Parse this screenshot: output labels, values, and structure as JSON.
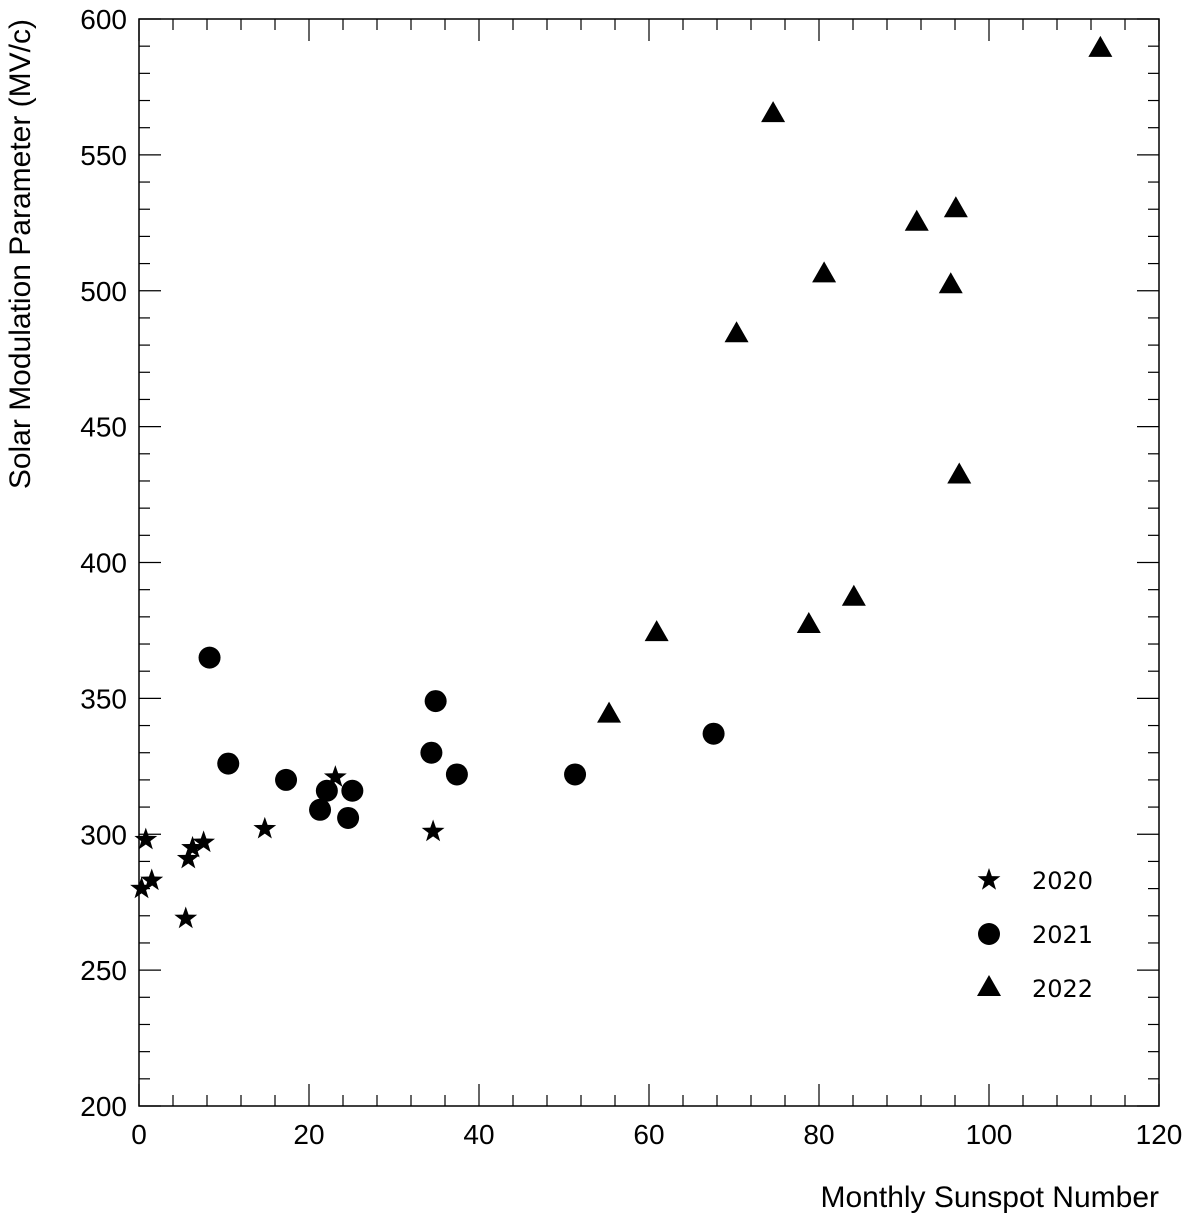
{
  "chart_data": {
    "type": "scatter",
    "title": "",
    "xlabel": "Monthly Sunspot Number",
    "ylabel": "Solar Modulation Parameter (MV/c)",
    "xlim": [
      0,
      120
    ],
    "ylim": [
      200,
      600
    ],
    "x_ticks": [
      "0",
      "20",
      "40",
      "60",
      "80",
      "100",
      "120"
    ],
    "y_ticks": [
      "200",
      "250",
      "300",
      "350",
      "400",
      "450",
      "500",
      "550",
      "600"
    ],
    "grid": false,
    "legend_position": "bottom-right",
    "series": [
      {
        "name": "2020",
        "marker": "star",
        "points": [
          {
            "x": 0.3,
            "y": 280
          },
          {
            "x": 0.8,
            "y": 298
          },
          {
            "x": 1.5,
            "y": 283
          },
          {
            "x": 5.5,
            "y": 269
          },
          {
            "x": 5.8,
            "y": 291
          },
          {
            "x": 6.3,
            "y": 295
          },
          {
            "x": 7.6,
            "y": 297
          },
          {
            "x": 14.8,
            "y": 302
          },
          {
            "x": 23.1,
            "y": 321
          },
          {
            "x": 34.6,
            "y": 301
          }
        ]
      },
      {
        "name": "2021",
        "marker": "circle",
        "points": [
          {
            "x": 8.3,
            "y": 365
          },
          {
            "x": 10.5,
            "y": 326
          },
          {
            "x": 17.3,
            "y": 320
          },
          {
            "x": 21.3,
            "y": 309
          },
          {
            "x": 22.1,
            "y": 316
          },
          {
            "x": 24.6,
            "y": 306
          },
          {
            "x": 25.1,
            "y": 316
          },
          {
            "x": 34.4,
            "y": 330
          },
          {
            "x": 34.9,
            "y": 349
          },
          {
            "x": 37.4,
            "y": 322
          },
          {
            "x": 51.3,
            "y": 322
          },
          {
            "x": 67.6,
            "y": 337
          }
        ]
      },
      {
        "name": "2022",
        "marker": "triangle",
        "points": [
          {
            "x": 55.3,
            "y": 344
          },
          {
            "x": 60.9,
            "y": 374
          },
          {
            "x": 70.3,
            "y": 484
          },
          {
            "x": 74.6,
            "y": 565
          },
          {
            "x": 78.8,
            "y": 377
          },
          {
            "x": 80.6,
            "y": 506
          },
          {
            "x": 84.1,
            "y": 387
          },
          {
            "x": 91.5,
            "y": 525
          },
          {
            "x": 95.5,
            "y": 502
          },
          {
            "x": 96.1,
            "y": 530
          },
          {
            "x": 96.5,
            "y": 432
          },
          {
            "x": 113.1,
            "y": 589
          }
        ]
      }
    ]
  }
}
